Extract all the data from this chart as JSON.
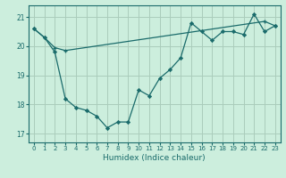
{
  "xlabel": "Humidex (Indice chaleur)",
  "bg_color": "#cceedd",
  "grid_color": "#aaccbb",
  "line_color": "#1a6b6b",
  "xlim": [
    -0.5,
    23.5
  ],
  "ylim": [
    16.7,
    21.4
  ],
  "yticks": [
    17,
    18,
    19,
    20,
    21
  ],
  "xticks": [
    0,
    1,
    2,
    3,
    4,
    5,
    6,
    7,
    8,
    9,
    10,
    11,
    12,
    13,
    14,
    15,
    16,
    17,
    18,
    19,
    20,
    21,
    22,
    23
  ],
  "series1_x": [
    0,
    1,
    2,
    3,
    4,
    5,
    6,
    7,
    8,
    9,
    10,
    11,
    12,
    13,
    14,
    15,
    16,
    17,
    18,
    19,
    20,
    21,
    22,
    23
  ],
  "series1_y": [
    20.6,
    20.3,
    19.8,
    18.2,
    17.9,
    17.8,
    17.6,
    17.2,
    17.4,
    17.4,
    18.5,
    18.3,
    18.9,
    19.2,
    19.6,
    20.8,
    20.5,
    20.2,
    20.5,
    20.5,
    20.4,
    21.1,
    20.5,
    20.7
  ],
  "series2_x": [
    0,
    1,
    2,
    3,
    22,
    23
  ],
  "series2_y": [
    20.6,
    20.3,
    19.95,
    19.85,
    20.85,
    20.7
  ]
}
